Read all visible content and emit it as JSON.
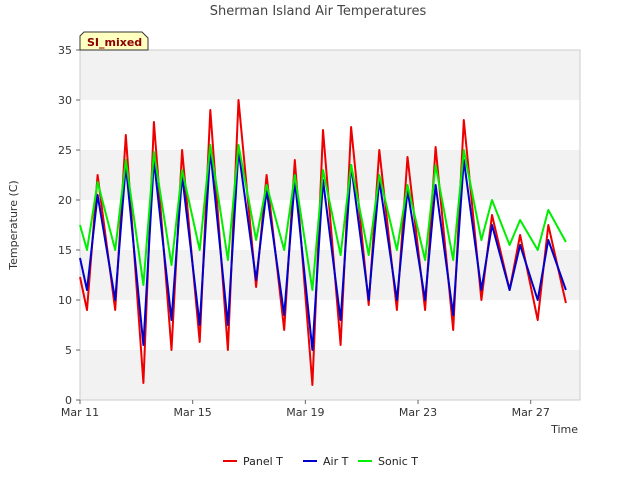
{
  "chart_data": {
    "type": "line",
    "title": "Sherman Island Air Temperatures",
    "xlabel": "Time",
    "ylabel": "Temperature (C)",
    "badge": "SI_mixed",
    "x_range": [
      "2024-03-11",
      "2024-03-28 18:00"
    ],
    "ylim": [
      0,
      35
    ],
    "yticks": [
      0,
      5,
      10,
      15,
      20,
      25,
      30,
      35
    ],
    "xticks": [
      {
        "date": "2024-03-11",
        "label": "Mar 11"
      },
      {
        "date": "2024-03-15",
        "label": "Mar 15"
      },
      {
        "date": "2024-03-19",
        "label": "Mar 19"
      },
      {
        "date": "2024-03-23",
        "label": "Mar 23"
      },
      {
        "date": "2024-03-27",
        "label": "Mar 27"
      }
    ],
    "grid": "horizontal-bands",
    "legend_position": "bottom",
    "series": [
      {
        "name": "Panel T",
        "color": "#ee0000",
        "points": [
          [
            "2024-03-11 00:00",
            12.3
          ],
          [
            "2024-03-11 06:00",
            9.0
          ],
          [
            "2024-03-11 15:00",
            22.5
          ],
          [
            "2024-03-12 06:00",
            9.0
          ],
          [
            "2024-03-12 15:00",
            26.5
          ],
          [
            "2024-03-13 06:00",
            1.7
          ],
          [
            "2024-03-13 15:00",
            27.8
          ],
          [
            "2024-03-14 06:00",
            5.0
          ],
          [
            "2024-03-14 15:00",
            25.0
          ],
          [
            "2024-03-15 06:00",
            5.8
          ],
          [
            "2024-03-15 15:00",
            29.0
          ],
          [
            "2024-03-16 06:00",
            5.0
          ],
          [
            "2024-03-16 15:00",
            30.0
          ],
          [
            "2024-03-17 06:00",
            11.3
          ],
          [
            "2024-03-17 15:00",
            22.5
          ],
          [
            "2024-03-18 06:00",
            7.0
          ],
          [
            "2024-03-18 15:00",
            24.0
          ],
          [
            "2024-03-19 06:00",
            1.5
          ],
          [
            "2024-03-19 15:00",
            27.0
          ],
          [
            "2024-03-20 06:00",
            5.5
          ],
          [
            "2024-03-20 15:00",
            27.3
          ],
          [
            "2024-03-21 06:00",
            9.5
          ],
          [
            "2024-03-21 15:00",
            25.0
          ],
          [
            "2024-03-22 06:00",
            9.0
          ],
          [
            "2024-03-22 15:00",
            24.3
          ],
          [
            "2024-03-23 06:00",
            9.0
          ],
          [
            "2024-03-23 15:00",
            25.3
          ],
          [
            "2024-03-24 06:00",
            7.0
          ],
          [
            "2024-03-24 15:00",
            28.0
          ],
          [
            "2024-03-25 06:00",
            10.0
          ],
          [
            "2024-03-25 15:00",
            18.5
          ],
          [
            "2024-03-26 06:00",
            11.0
          ],
          [
            "2024-03-26 15:00",
            16.5
          ],
          [
            "2024-03-27 06:00",
            8.0
          ],
          [
            "2024-03-27 15:00",
            17.5
          ],
          [
            "2024-03-28 06:00",
            9.7
          ]
        ]
      },
      {
        "name": "Air T",
        "color": "#0000cc",
        "points": [
          [
            "2024-03-11 00:00",
            14.2
          ],
          [
            "2024-03-11 06:00",
            11.0
          ],
          [
            "2024-03-11 15:00",
            20.5
          ],
          [
            "2024-03-12 06:00",
            10.0
          ],
          [
            "2024-03-12 15:00",
            23.5
          ],
          [
            "2024-03-13 06:00",
            5.5
          ],
          [
            "2024-03-13 15:00",
            24.0
          ],
          [
            "2024-03-14 06:00",
            8.0
          ],
          [
            "2024-03-14 15:00",
            22.5
          ],
          [
            "2024-03-15 06:00",
            7.5
          ],
          [
            "2024-03-15 15:00",
            25.0
          ],
          [
            "2024-03-16 06:00",
            7.5
          ],
          [
            "2024-03-16 15:00",
            25.0
          ],
          [
            "2024-03-17 06:00",
            12.0
          ],
          [
            "2024-03-17 15:00",
            21.0
          ],
          [
            "2024-03-18 06:00",
            8.5
          ],
          [
            "2024-03-18 15:00",
            22.0
          ],
          [
            "2024-03-19 06:00",
            5.0
          ],
          [
            "2024-03-19 15:00",
            22.0
          ],
          [
            "2024-03-20 06:00",
            8.0
          ],
          [
            "2024-03-20 15:00",
            23.5
          ],
          [
            "2024-03-21 06:00",
            10.0
          ],
          [
            "2024-03-21 15:00",
            22.0
          ],
          [
            "2024-03-22 06:00",
            10.0
          ],
          [
            "2024-03-22 15:00",
            21.0
          ],
          [
            "2024-03-23 06:00",
            10.0
          ],
          [
            "2024-03-23 15:00",
            21.5
          ],
          [
            "2024-03-24 06:00",
            8.5
          ],
          [
            "2024-03-24 15:00",
            24.0
          ],
          [
            "2024-03-25 06:00",
            11.0
          ],
          [
            "2024-03-25 15:00",
            17.5
          ],
          [
            "2024-03-26 06:00",
            11.0
          ],
          [
            "2024-03-26 15:00",
            15.5
          ],
          [
            "2024-03-27 06:00",
            10.0
          ],
          [
            "2024-03-27 15:00",
            16.0
          ],
          [
            "2024-03-28 06:00",
            11.0
          ]
        ]
      },
      {
        "name": "Sonic T",
        "color": "#00ee00",
        "points": [
          [
            "2024-03-11 00:00",
            17.5
          ],
          [
            "2024-03-11 06:00",
            15.0
          ],
          [
            "2024-03-11 15:00",
            21.8
          ],
          [
            "2024-03-12 06:00",
            15.0
          ],
          [
            "2024-03-12 15:00",
            24.0
          ],
          [
            "2024-03-13 06:00",
            11.5
          ],
          [
            "2024-03-13 15:00",
            24.8
          ],
          [
            "2024-03-14 06:00",
            13.5
          ],
          [
            "2024-03-14 15:00",
            23.0
          ],
          [
            "2024-03-15 06:00",
            15.0
          ],
          [
            "2024-03-15 15:00",
            25.5
          ],
          [
            "2024-03-16 06:00",
            14.0
          ],
          [
            "2024-03-16 15:00",
            25.5
          ],
          [
            "2024-03-17 06:00",
            16.0
          ],
          [
            "2024-03-17 15:00",
            21.5
          ],
          [
            "2024-03-18 06:00",
            15.0
          ],
          [
            "2024-03-18 15:00",
            22.5
          ],
          [
            "2024-03-19 06:00",
            11.0
          ],
          [
            "2024-03-19 15:00",
            23.0
          ],
          [
            "2024-03-20 06:00",
            14.5
          ],
          [
            "2024-03-20 15:00",
            23.5
          ],
          [
            "2024-03-21 06:00",
            14.5
          ],
          [
            "2024-03-21 15:00",
            22.5
          ],
          [
            "2024-03-22 06:00",
            15.0
          ],
          [
            "2024-03-22 15:00",
            21.5
          ],
          [
            "2024-03-23 06:00",
            14.0
          ],
          [
            "2024-03-23 15:00",
            23.5
          ],
          [
            "2024-03-24 06:00",
            14.0
          ],
          [
            "2024-03-24 15:00",
            25.0
          ],
          [
            "2024-03-25 06:00",
            16.0
          ],
          [
            "2024-03-25 15:00",
            20.0
          ],
          [
            "2024-03-26 06:00",
            15.5
          ],
          [
            "2024-03-26 15:00",
            18.0
          ],
          [
            "2024-03-27 06:00",
            15.0
          ],
          [
            "2024-03-27 15:00",
            19.0
          ],
          [
            "2024-03-28 06:00",
            15.8
          ]
        ]
      }
    ]
  }
}
